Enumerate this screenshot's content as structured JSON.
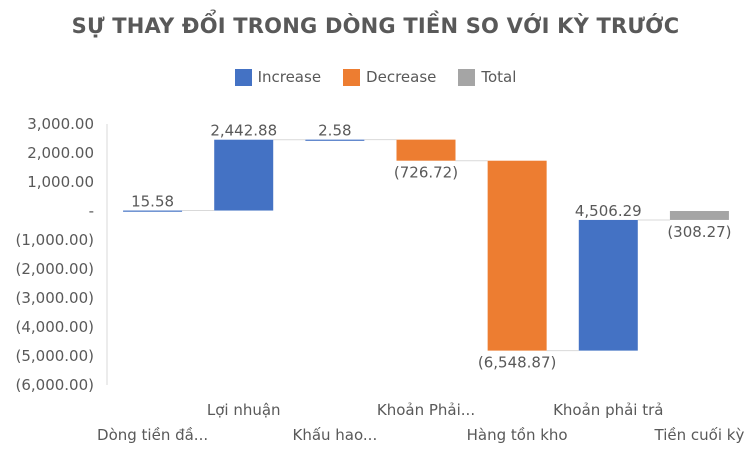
{
  "colors": {
    "increase": "#4472C4",
    "decrease": "#ED7D31",
    "total": "#A5A5A5",
    "text": "#595959",
    "axis": "#D9D9D9"
  },
  "chart_data": {
    "type": "waterfall",
    "title": "SỰ THAY ĐỔI TRONG DÒNG TIỀN SO VỚI KỲ TRƯỚC",
    "legend": {
      "placement": "top",
      "entries": [
        {
          "key": "increase",
          "label": "Increase"
        },
        {
          "key": "decrease",
          "label": "Decrease"
        },
        {
          "key": "total",
          "label": "Total"
        }
      ]
    },
    "ylim": [
      -6000,
      3000
    ],
    "yticks": [
      3000,
      2000,
      1000,
      0,
      -1000,
      -2000,
      -3000,
      -4000,
      -5000,
      -6000
    ],
    "ytick_labels": [
      "3,000.00",
      "2,000.00",
      "1,000.00",
      "-",
      "(1,000.00)",
      "(2,000.00)",
      "(3,000.00)",
      "(4,000.00)",
      "(5,000.00)",
      "(6,000.00)"
    ],
    "grid": false,
    "categories": [
      "Dòng tiền đầ...",
      "Lợi nhuận",
      "Khấu hao...",
      "Khoản Phải...",
      "Hàng tồn kho",
      "Khoản phải trả",
      "Tiền cuối kỳ"
    ],
    "values": [
      15.58,
      2442.88,
      2.58,
      -726.72,
      -6548.87,
      4506.29,
      -308.27
    ],
    "kinds": [
      "increase",
      "increase",
      "increase",
      "decrease",
      "decrease",
      "increase",
      "total"
    ],
    "data_labels": [
      "15.58",
      "2,442.88",
      "2.58",
      "(726.72)",
      "(6,548.87)",
      "4,506.29",
      "(308.27)"
    ]
  }
}
